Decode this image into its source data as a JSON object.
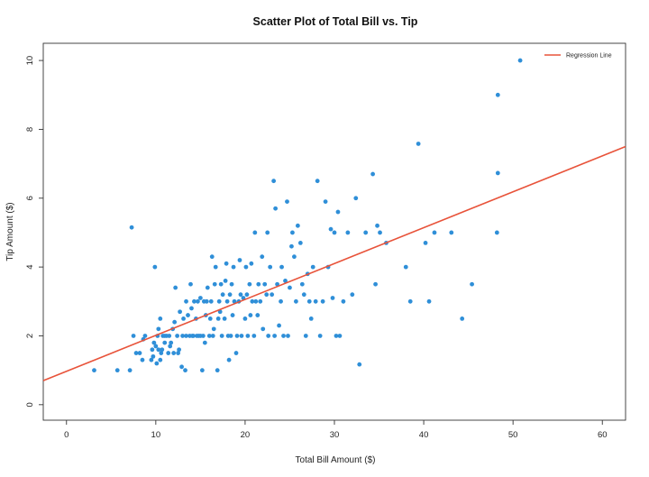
{
  "chart_data": {
    "type": "scatter",
    "title": "Scatter Plot of Total Bill vs. Tip",
    "xlabel": "Total Bill Amount ($)",
    "ylabel": "Tip Amount ($)",
    "xlim": [
      -2.6,
      62.6
    ],
    "ylim": [
      -0.45,
      10.5
    ],
    "xticks": [
      0,
      10,
      20,
      30,
      40,
      50,
      60
    ],
    "yticks": [
      0,
      2,
      4,
      6,
      8,
      10
    ],
    "grid": false,
    "legend": {
      "position": "top-right",
      "entries": [
        "Regression Line"
      ]
    },
    "point_color": "#2f8fd8",
    "line_color": "#e8533a",
    "regression": {
      "label": "Regression Line",
      "x": [
        -2.6,
        62.6
      ],
      "y": [
        0.7,
        7.5
      ]
    },
    "points": [
      [
        3.1,
        1.0
      ],
      [
        5.7,
        1.0
      ],
      [
        7.1,
        1.0
      ],
      [
        7.3,
        5.15
      ],
      [
        7.5,
        2.0
      ],
      [
        7.8,
        1.5
      ],
      [
        8.2,
        1.5
      ],
      [
        8.5,
        1.3
      ],
      [
        8.6,
        1.9
      ],
      [
        8.8,
        2.0
      ],
      [
        9.5,
        1.3
      ],
      [
        9.6,
        1.6
      ],
      [
        9.7,
        1.4
      ],
      [
        9.8,
        1.8
      ],
      [
        9.9,
        4.0
      ],
      [
        10.0,
        1.7
      ],
      [
        10.1,
        1.2
      ],
      [
        10.2,
        2.0
      ],
      [
        10.3,
        1.6
      ],
      [
        10.3,
        2.2
      ],
      [
        10.5,
        1.3
      ],
      [
        10.5,
        2.5
      ],
      [
        10.6,
        1.5
      ],
      [
        10.7,
        1.6
      ],
      [
        10.8,
        2.0
      ],
      [
        11.0,
        1.8
      ],
      [
        11.0,
        2.0
      ],
      [
        11.2,
        2.0
      ],
      [
        11.4,
        1.5
      ],
      [
        11.5,
        2.0
      ],
      [
        11.6,
        1.7
      ],
      [
        11.7,
        1.8
      ],
      [
        11.9,
        2.2
      ],
      [
        12.0,
        1.5
      ],
      [
        12.1,
        2.4
      ],
      [
        12.2,
        3.4
      ],
      [
        12.4,
        2.0
      ],
      [
        12.5,
        1.5
      ],
      [
        12.6,
        1.6
      ],
      [
        12.7,
        2.7
      ],
      [
        12.9,
        1.1
      ],
      [
        13.0,
        2.0
      ],
      [
        13.1,
        2.5
      ],
      [
        13.3,
        1.0
      ],
      [
        13.4,
        2.0
      ],
      [
        13.4,
        3.0
      ],
      [
        13.6,
        2.6
      ],
      [
        13.8,
        2.0
      ],
      [
        13.9,
        3.5
      ],
      [
        14.0,
        2.8
      ],
      [
        14.1,
        2.0
      ],
      [
        14.2,
        2.0
      ],
      [
        14.3,
        3.0
      ],
      [
        14.5,
        2.5
      ],
      [
        14.6,
        2.0
      ],
      [
        14.7,
        3.0
      ],
      [
        14.8,
        2.0
      ],
      [
        15.0,
        2.0
      ],
      [
        15.0,
        3.1
      ],
      [
        15.2,
        1.0
      ],
      [
        15.3,
        2.0
      ],
      [
        15.4,
        3.0
      ],
      [
        15.5,
        1.8
      ],
      [
        15.6,
        2.6
      ],
      [
        15.7,
        3.0
      ],
      [
        15.8,
        3.4
      ],
      [
        16.0,
        2.0
      ],
      [
        16.1,
        2.5
      ],
      [
        16.2,
        3.0
      ],
      [
        16.3,
        4.3
      ],
      [
        16.4,
        2.0
      ],
      [
        16.5,
        2.2
      ],
      [
        16.6,
        3.5
      ],
      [
        16.7,
        4.0
      ],
      [
        16.9,
        1.0
      ],
      [
        17.0,
        2.5
      ],
      [
        17.1,
        3.0
      ],
      [
        17.2,
        2.7
      ],
      [
        17.3,
        3.5
      ],
      [
        17.4,
        2.0
      ],
      [
        17.5,
        3.2
      ],
      [
        17.7,
        2.5
      ],
      [
        17.8,
        3.6
      ],
      [
        17.9,
        4.1
      ],
      [
        18.0,
        3.0
      ],
      [
        18.1,
        2.0
      ],
      [
        18.2,
        1.3
      ],
      [
        18.3,
        3.2
      ],
      [
        18.4,
        2.0
      ],
      [
        18.5,
        3.5
      ],
      [
        18.6,
        2.6
      ],
      [
        18.7,
        4.0
      ],
      [
        18.8,
        3.0
      ],
      [
        19.0,
        1.5
      ],
      [
        19.1,
        2.0
      ],
      [
        19.3,
        3.0
      ],
      [
        19.4,
        4.2
      ],
      [
        19.5,
        3.2
      ],
      [
        19.6,
        2.0
      ],
      [
        19.8,
        3.1
      ],
      [
        20.0,
        2.5
      ],
      [
        20.1,
        4.0
      ],
      [
        20.2,
        3.2
      ],
      [
        20.3,
        2.0
      ],
      [
        20.5,
        3.5
      ],
      [
        20.6,
        2.6
      ],
      [
        20.7,
        4.1
      ],
      [
        20.8,
        3.0
      ],
      [
        21.0,
        2.0
      ],
      [
        21.1,
        5.0
      ],
      [
        21.2,
        3.0
      ],
      [
        21.4,
        2.6
      ],
      [
        21.5,
        3.5
      ],
      [
        21.7,
        3.0
      ],
      [
        21.9,
        4.3
      ],
      [
        22.0,
        2.2
      ],
      [
        22.2,
        3.5
      ],
      [
        22.4,
        3.2
      ],
      [
        22.5,
        5.0
      ],
      [
        22.6,
        2.0
      ],
      [
        22.8,
        4.0
      ],
      [
        23.0,
        3.2
      ],
      [
        23.2,
        6.5
      ],
      [
        23.3,
        2.0
      ],
      [
        23.4,
        5.7
      ],
      [
        23.6,
        3.5
      ],
      [
        23.8,
        2.3
      ],
      [
        24.0,
        3.0
      ],
      [
        24.1,
        4.0
      ],
      [
        24.3,
        2.0
      ],
      [
        24.5,
        3.6
      ],
      [
        24.7,
        5.9
      ],
      [
        24.8,
        2.0
      ],
      [
        25.0,
        3.4
      ],
      [
        25.2,
        4.6
      ],
      [
        25.3,
        5.0
      ],
      [
        25.5,
        4.3
      ],
      [
        25.7,
        3.0
      ],
      [
        25.9,
        5.2
      ],
      [
        26.2,
        4.7
      ],
      [
        26.4,
        3.5
      ],
      [
        26.6,
        3.2
      ],
      [
        26.8,
        2.0
      ],
      [
        27.0,
        3.8
      ],
      [
        27.2,
        3.0
      ],
      [
        27.4,
        2.5
      ],
      [
        27.6,
        4.0
      ],
      [
        27.9,
        3.0
      ],
      [
        28.1,
        6.5
      ],
      [
        28.4,
        2.0
      ],
      [
        28.7,
        3.0
      ],
      [
        29.0,
        5.9
      ],
      [
        29.3,
        4.0
      ],
      [
        29.6,
        5.1
      ],
      [
        29.8,
        3.1
      ],
      [
        30.0,
        5.0
      ],
      [
        30.2,
        2.0
      ],
      [
        30.4,
        5.6
      ],
      [
        30.6,
        2.0
      ],
      [
        31.0,
        3.0
      ],
      [
        31.5,
        5.0
      ],
      [
        32.0,
        3.2
      ],
      [
        32.4,
        6.0
      ],
      [
        32.8,
        1.17
      ],
      [
        33.5,
        5.0
      ],
      [
        34.3,
        6.7
      ],
      [
        34.6,
        3.5
      ],
      [
        34.8,
        5.2
      ],
      [
        35.1,
        5.0
      ],
      [
        35.8,
        4.7
      ],
      [
        38.0,
        4.0
      ],
      [
        38.5,
        3.0
      ],
      [
        39.4,
        7.58
      ],
      [
        40.2,
        4.7
      ],
      [
        40.6,
        3.0
      ],
      [
        41.2,
        5.0
      ],
      [
        43.1,
        5.0
      ],
      [
        44.3,
        2.5
      ],
      [
        45.4,
        3.5
      ],
      [
        48.2,
        5.0
      ],
      [
        48.3,
        6.73
      ],
      [
        48.3,
        9.0
      ],
      [
        50.8,
        10.0
      ]
    ]
  }
}
